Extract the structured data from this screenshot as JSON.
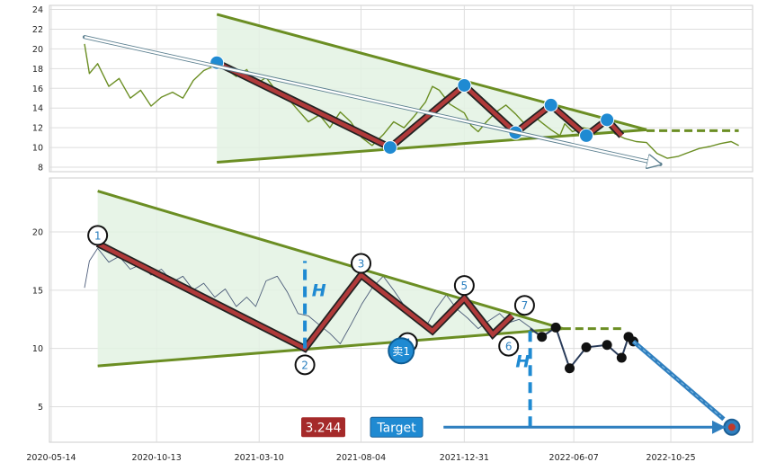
{
  "chart_data": [
    {
      "type": "line",
      "panel": "top",
      "title": "",
      "xlabel": "",
      "ylabel": "",
      "ylim": [
        7.5,
        24.5
      ],
      "yticks": [
        8,
        10,
        12,
        14,
        16,
        18,
        20,
        22,
        24
      ],
      "grid": true,
      "colors": {
        "price": "#6b8e23",
        "trend": "#6b8e23",
        "fill": "#e3f2e3",
        "zigzag_outer": "#222222",
        "zigzag_inner": "#b03a3a",
        "marker": "#1f8ad2",
        "arrow": "#ffffff"
      },
      "price_series": {
        "x": [
          "2020-07-01",
          "2020-07-08",
          "2020-07-20",
          "2020-08-05",
          "2020-08-20",
          "2020-09-05",
          "2020-09-20",
          "2020-10-05",
          "2020-10-20",
          "2020-11-05",
          "2020-11-20",
          "2020-12-05",
          "2020-12-20",
          "2021-01-05",
          "2021-01-08",
          "2021-01-20",
          "2021-02-05",
          "2021-02-20",
          "2021-03-05",
          "2021-03-20",
          "2021-04-05",
          "2021-04-20",
          "2021-05-05",
          "2021-05-20",
          "2021-06-05",
          "2021-06-20",
          "2021-07-05",
          "2021-07-20",
          "2021-08-05",
          "2021-08-20",
          "2021-09-05",
          "2021-09-20",
          "2021-10-05",
          "2021-10-20",
          "2021-11-05",
          "2021-11-15",
          "2021-11-25",
          "2021-12-10",
          "2021-12-31",
          "2022-01-10",
          "2022-01-20",
          "2022-02-01",
          "2022-02-15",
          "2022-03-01",
          "2022-03-15",
          "2022-03-28",
          "2022-04-10",
          "2022-04-22",
          "2022-05-05",
          "2022-05-18",
          "2022-05-25",
          "2022-06-05",
          "2022-06-20",
          "2022-07-05",
          "2022-07-20",
          "2022-08-05",
          "2022-08-20",
          "2022-09-05",
          "2022-09-20",
          "2022-10-05",
          "2022-10-20",
          "2022-11-05",
          "2022-11-20",
          "2022-12-05",
          "2022-12-20",
          "2023-01-05",
          "2023-01-20",
          "2023-01-31"
        ],
        "y": [
          20.5,
          17.5,
          18.5,
          16.2,
          17.0,
          15.0,
          15.8,
          14.2,
          15.1,
          15.6,
          15.0,
          16.8,
          17.8,
          18.3,
          18.9,
          18.0,
          17.2,
          17.9,
          16.4,
          17.1,
          15.6,
          15.0,
          13.8,
          12.6,
          13.3,
          12.0,
          13.6,
          12.6,
          11.0,
          10.2,
          11.3,
          12.6,
          12.0,
          13.2,
          14.6,
          16.2,
          15.8,
          14.4,
          13.5,
          12.2,
          11.6,
          12.6,
          13.6,
          14.3,
          13.4,
          12.4,
          13.2,
          12.5,
          11.8,
          11.2,
          12.4,
          11.6,
          12.0,
          11.8,
          12.8,
          11.4,
          10.9,
          10.6,
          10.5,
          9.4,
          8.9,
          9.1,
          9.5,
          9.9,
          10.1,
          10.4,
          10.6,
          10.2
        ]
      },
      "zigzag": {
        "x": [
          "2021-01-08",
          "2021-09-15",
          "2021-12-31",
          "2022-03-15",
          "2022-05-05",
          "2022-06-25",
          "2022-07-25",
          "2022-08-15"
        ],
        "y": [
          18.6,
          10.0,
          16.3,
          11.5,
          14.3,
          11.2,
          12.8,
          11.2
        ]
      },
      "pivot_markers": {
        "x": [
          "2021-01-08",
          "2021-09-15",
          "2021-12-31",
          "2022-03-15",
          "2022-05-05",
          "2022-06-25",
          "2022-07-25"
        ],
        "y": [
          18.6,
          10.0,
          16.3,
          11.5,
          14.3,
          11.2,
          12.8
        ]
      },
      "triangle_upper": {
        "x": [
          "2021-01-08",
          "2022-09-20"
        ],
        "y": [
          23.5,
          11.8
        ]
      },
      "triangle_lower": {
        "x": [
          "2021-01-08",
          "2022-09-20"
        ],
        "y": [
          8.5,
          11.8
        ]
      },
      "dashed_extension": {
        "x": [
          "2022-09-20",
          "2023-01-31"
        ],
        "y": [
          11.7,
          11.7
        ]
      },
      "arrow": {
        "x": [
          "2020-07-01",
          "2022-10-10"
        ],
        "y": [
          21.2,
          8.3
        ]
      }
    },
    {
      "type": "line",
      "panel": "bottom",
      "title": "",
      "xlabel": "",
      "ylabel": "",
      "ylim": [
        2,
        24.5
      ],
      "yticks": [
        5,
        10,
        15,
        20
      ],
      "xticks": [
        "2020-05-14",
        "2020-10-13",
        "2021-03-10",
        "2021-08-04",
        "2021-12-31",
        "2022-06-07",
        "2022-10-25"
      ],
      "grid": true,
      "colors": {
        "price": "#4d5d7a",
        "trend": "#6b8e23",
        "fill": "#e3f2e3",
        "zigzag_outer": "#222222",
        "zigzag_inner": "#b03a3a",
        "marker": "#1f8ad2",
        "measure": "#1f8ad2",
        "value_box": "#a52a2a",
        "target_box": "#1f8ad2",
        "projection": "#2f7fbf",
        "forecast_dot": "#111111"
      },
      "price_series": {
        "x": [
          "2020-07-01",
          "2020-07-08",
          "2020-07-20",
          "2020-08-05",
          "2020-08-20",
          "2020-09-05",
          "2020-09-20",
          "2020-10-05",
          "2020-10-20",
          "2020-11-05",
          "2020-11-20",
          "2020-12-05",
          "2020-12-20",
          "2021-01-05",
          "2021-01-20",
          "2021-02-05",
          "2021-02-20",
          "2021-03-05",
          "2021-03-20",
          "2021-04-05",
          "2021-04-20",
          "2021-05-05",
          "2021-05-20",
          "2021-06-05",
          "2021-06-20",
          "2021-07-05",
          "2021-07-20",
          "2021-08-05",
          "2021-08-20",
          "2021-09-05",
          "2021-09-20",
          "2021-10-05",
          "2021-10-20",
          "2021-11-05",
          "2021-11-20",
          "2021-12-05",
          "2021-12-20",
          "2022-01-05",
          "2022-01-20",
          "2022-02-05",
          "2022-02-20",
          "2022-03-05",
          "2022-03-20",
          "2022-04-05",
          "2022-04-10"
        ],
        "y": [
          15.2,
          17.5,
          18.6,
          17.4,
          17.9,
          16.8,
          17.2,
          16.3,
          16.8,
          15.7,
          16.2,
          15.0,
          15.6,
          14.4,
          15.1,
          13.6,
          14.4,
          13.6,
          15.8,
          16.2,
          14.8,
          13.0,
          12.8,
          12.0,
          11.3,
          10.4,
          12.0,
          13.8,
          15.2,
          16.2,
          15.0,
          13.7,
          12.5,
          11.8,
          13.4,
          14.6,
          13.4,
          12.6,
          11.7,
          12.4,
          13.0,
          12.2,
          12.5,
          11.8,
          11.6
        ]
      },
      "zigzag": {
        "x": [
          "2020-07-20",
          "2021-05-15",
          "2021-08-04",
          "2021-11-15",
          "2021-12-31",
          "2022-02-10",
          "2022-03-10"
        ],
        "y": [
          19.0,
          10.0,
          16.3,
          11.5,
          14.3,
          11.2,
          12.8
        ]
      },
      "pivot_markers": {
        "labels": [
          "1",
          "2",
          "3",
          "4",
          "5",
          "6",
          "7"
        ],
        "x": [
          "2020-07-20",
          "2021-05-15",
          "2021-08-04",
          "2021-10-10",
          "2021-12-31",
          "2022-03-05",
          "2022-03-28"
        ],
        "y": [
          19.7,
          8.6,
          17.3,
          10.5,
          15.4,
          10.2,
          13.7
        ]
      },
      "triangle_upper": {
        "x": [
          "2020-07-20",
          "2022-05-22"
        ],
        "y": [
          23.5,
          11.7
        ]
      },
      "triangle_lower": {
        "x": [
          "2020-07-20",
          "2022-05-22"
        ],
        "y": [
          8.5,
          11.7
        ]
      },
      "dashed_extension": {
        "x": [
          "2022-05-22",
          "2022-08-20"
        ],
        "y": [
          11.7,
          11.7
        ]
      },
      "forecast": {
        "x": [
          "2022-04-05",
          "2022-04-22",
          "2022-05-12",
          "2022-06-01",
          "2022-06-25",
          "2022-07-25",
          "2022-08-15",
          "2022-08-25",
          "2022-09-01"
        ],
        "y": [
          11.7,
          11.0,
          11.8,
          8.3,
          10.1,
          10.3,
          9.2,
          11.0,
          10.6
        ]
      },
      "projection": {
        "x": [
          "2022-09-01",
          "2023-01-21"
        ],
        "y": [
          10.6,
          3.244
        ]
      },
      "target_point": {
        "x": "2023-01-21",
        "y": 3.244
      },
      "sell_marker": {
        "label": "卖1",
        "x": "2021-10-01",
        "y": 9.8
      },
      "h_labels": [
        {
          "text": "H",
          "x": "2021-05-25",
          "y": 14.5
        },
        {
          "text": "H",
          "x": "2022-03-15",
          "y": 8.4
        }
      ],
      "h_measure_lines": [
        {
          "x": "2021-05-15",
          "y": [
            10.0,
            17.5
          ]
        },
        {
          "x": "2022-04-05",
          "y": [
            3.244,
            11.5
          ]
        }
      ],
      "target_value_label": "3.244",
      "target_label": "Target",
      "target_arrow": {
        "x": [
          "2021-12-01",
          "2023-01-10"
        ],
        "y": [
          3.244,
          3.244
        ]
      }
    }
  ]
}
